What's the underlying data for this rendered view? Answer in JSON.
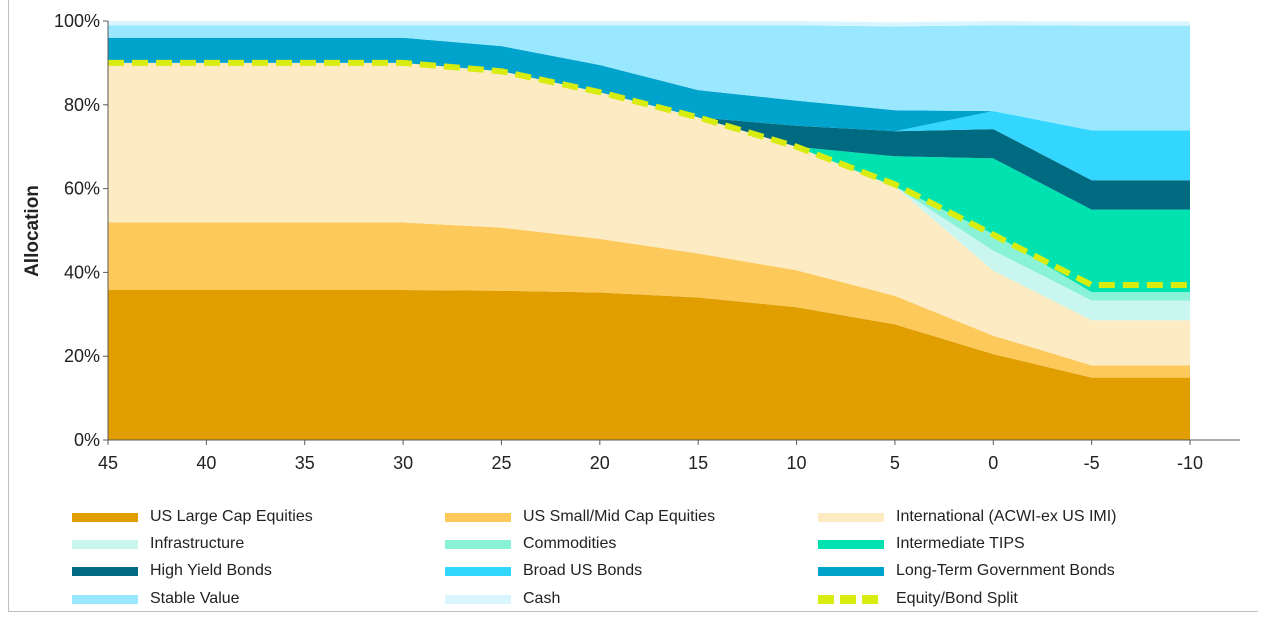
{
  "chart_data": {
    "type": "area",
    "ylabel": "Allocation",
    "xlabel": "",
    "x": [
      45,
      40,
      35,
      30,
      25,
      20,
      15,
      10,
      5,
      0,
      -5,
      -10
    ],
    "xticks": [
      "45",
      "40",
      "35",
      "30",
      "25",
      "20",
      "15",
      "10",
      "5",
      "0",
      "-5",
      "-10"
    ],
    "yticks": [
      "0%",
      "20%",
      "40%",
      "60%",
      "80%",
      "100%"
    ],
    "ylim": [
      0,
      100
    ],
    "stacked": true,
    "grid": false,
    "legend_position": "bottom",
    "series": [
      {
        "name": "US Large Cap Equities",
        "color": "#e09e00",
        "values": [
          35.8,
          35.8,
          35.8,
          35.8,
          35.6,
          35.2,
          34.0,
          31.7,
          27.6,
          20.5,
          14.9,
          14.9
        ]
      },
      {
        "name": "US Small/Mid Cap Equities",
        "color": "#fcc95a",
        "values": [
          16.1,
          16.1,
          16.1,
          16.1,
          15.1,
          12.8,
          10.5,
          8.8,
          6.8,
          4.4,
          2.9,
          2.9
        ]
      },
      {
        "name": "International (ACWI-ex US IMI)",
        "color": "#fdebc3",
        "values": [
          38.1,
          38.1,
          38.1,
          38.1,
          37.3,
          35.0,
          32.5,
          29.5,
          26.1,
          15.5,
          10.8,
          10.8
        ]
      },
      {
        "name": "Infrastructure",
        "color": "#c9f7ef",
        "values": [
          0,
          0,
          0,
          0,
          0,
          0,
          0,
          0,
          0,
          4.8,
          4.7,
          4.7
        ]
      },
      {
        "name": "Commodities",
        "color": "#8af2d7",
        "values": [
          0,
          0,
          0,
          0,
          0,
          0,
          0,
          0,
          0,
          4.0,
          2.0,
          2.0
        ]
      },
      {
        "name": "Intermediate TIPS",
        "color": "#00e3b0",
        "values": [
          0,
          0,
          0,
          0,
          0,
          0,
          0,
          0,
          7.2,
          18.0,
          19.7,
          19.7
        ]
      },
      {
        "name": "High Yield Bonds",
        "color": "#006b80",
        "values": [
          0,
          0,
          0,
          0,
          0,
          0,
          0,
          5.0,
          6.0,
          7.0,
          7.0,
          7.0
        ]
      },
      {
        "name": "Broad US Bonds",
        "color": "#33d6ff",
        "values": [
          0,
          0,
          0,
          0,
          0,
          0,
          0,
          0,
          0,
          4.3,
          11.9,
          11.9
        ]
      },
      {
        "name": "Long-Term Government Bonds",
        "color": "#00a3cc",
        "values": [
          6.0,
          6.0,
          6.0,
          6.0,
          6.0,
          6.5,
          6.5,
          6.0,
          5.0,
          0,
          0,
          0
        ]
      },
      {
        "name": "Stable Value",
        "color": "#9ae8ff",
        "values": [
          3.0,
          3.0,
          3.0,
          3.0,
          5.0,
          9.5,
          15.5,
          18.0,
          20.0,
          20.5,
          25.0,
          25.0
        ]
      },
      {
        "name": "Cash",
        "color": "#d9f6ff",
        "values": [
          1.0,
          1.0,
          1.0,
          1.0,
          1.0,
          1.0,
          1.0,
          1.0,
          1.0,
          1.0,
          1.0,
          1.0
        ]
      }
    ],
    "line_series": {
      "name": "Equity/Bond Split",
      "color": "#d8ec0f",
      "style": "dashed",
      "values": [
        90,
        90,
        90,
        90,
        88,
        83,
        77,
        70,
        61,
        49,
        37,
        37
      ]
    }
  },
  "legend": {
    "items": [
      {
        "label": "US Large Cap Equities",
        "color": "#e09e00"
      },
      {
        "label": "US Small/Mid Cap Equities",
        "color": "#fcc95a"
      },
      {
        "label": "International (ACWI-ex US IMI)",
        "color": "#fdebc3"
      },
      {
        "label": "Infrastructure",
        "color": "#c9f7ef"
      },
      {
        "label": "Commodities",
        "color": "#8af2d7"
      },
      {
        "label": "Intermediate TIPS",
        "color": "#00e3b0"
      },
      {
        "label": "High Yield Bonds",
        "color": "#006b80"
      },
      {
        "label": "Broad US Bonds",
        "color": "#33d6ff"
      },
      {
        "label": "Long-Term Government Bonds",
        "color": "#00a3cc"
      },
      {
        "label": "Stable Value",
        "color": "#9ae8ff"
      },
      {
        "label": "Cash",
        "color": "#d9f6ff"
      },
      {
        "label": "Equity/Bond Split",
        "color": "#d8ec0f",
        "dashed": true
      }
    ]
  }
}
